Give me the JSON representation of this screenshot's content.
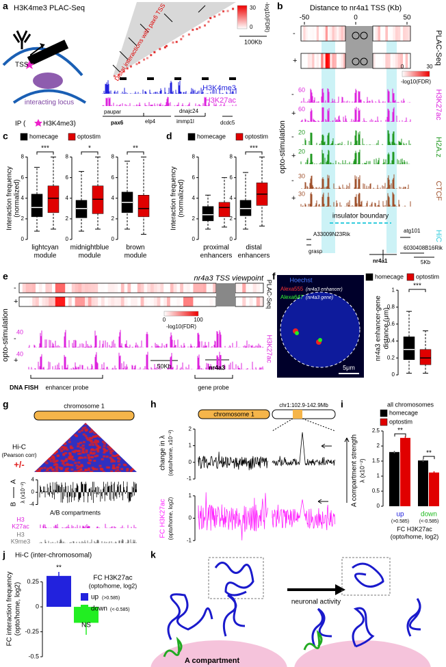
{
  "a": {
    "label": "a",
    "title": "H3K4me3 PLAC-Seq",
    "tss": "TSS",
    "interacting_locus": "interacting locus",
    "ip_prefix": "IP (",
    "ip_suffix": "H3K4me3)",
    "annotation": "Distal interactions with pax6 TSS",
    "colorbar": {
      "min": 0,
      "max": 30,
      "label": "-log10(FDR)"
    },
    "scale_bar": "100Kb",
    "tracks": [
      {
        "name": "H3K4me3",
        "color": "#2222dd"
      },
      {
        "name": "H3K27ac",
        "color": "#dd22dd"
      }
    ],
    "genes": [
      "paupar",
      "pax6",
      "elp4",
      "dnajc24",
      "immp1l",
      "dcdc5"
    ]
  },
  "b": {
    "label": "b",
    "title": "Distance to nr4a1 TSS (Kb)",
    "xticks": [
      -50,
      0,
      50
    ],
    "rows": [
      "-",
      "+"
    ],
    "assay": "PLAC-Seq",
    "condition": "opto-stimulation",
    "colorbar": {
      "min": 0,
      "max": 30,
      "label": "-log10(FDR)"
    },
    "tracks": [
      {
        "name": "H3K27ac",
        "color": "#dd22dd",
        "scales": [
          60,
          60
        ]
      },
      {
        "name": "H2A.z",
        "color": "#229922",
        "scales": [
          20,
          20
        ]
      },
      {
        "name": "CTCF",
        "color": "#a0522d",
        "scales": [
          30,
          30
        ]
      }
    ],
    "hic": "HiC",
    "insulator": "insulator boundary",
    "genes": [
      "A33009N23Rik",
      "grasp",
      "nr4a1",
      "atg101",
      "6030408B16Rik"
    ],
    "scale_bar": "5Kb"
  },
  "c": {
    "label": "c",
    "legend": [
      {
        "name": "homecage",
        "color": "#000000"
      },
      {
        "name": "optostim",
        "color": "#e00000"
      }
    ],
    "ylabel": [
      "Interaction frequency",
      "(normalized)"
    ],
    "ylim": [
      0,
      8.5
    ],
    "yticks": [
      0,
      2,
      4,
      6,
      8
    ],
    "groups": [
      {
        "name": [
          "lightcyan",
          "module"
        ],
        "significance": "***",
        "boxes": [
          {
            "min": 0.8,
            "q1": 2.2,
            "median": 3.1,
            "q3": 4.4,
            "max": 7.0
          },
          {
            "min": 1.0,
            "q1": 2.6,
            "median": 4.0,
            "q3": 5.2,
            "max": 8.0
          }
        ]
      },
      {
        "name": [
          "midnightblue",
          "module"
        ],
        "significance": "*",
        "boxes": [
          {
            "min": 0.8,
            "q1": 2.1,
            "median": 3.0,
            "q3": 3.8,
            "max": 6.6
          },
          {
            "min": 1.0,
            "q1": 2.5,
            "median": 3.9,
            "q3": 5.2,
            "max": 8.0
          }
        ]
      },
      {
        "name": [
          "brown",
          "module"
        ],
        "significance": "**",
        "boxes": [
          {
            "min": 1.0,
            "q1": 2.6,
            "median": 3.6,
            "q3": 4.6,
            "max": 7.6
          },
          {
            "min": 0.5,
            "q1": 2.2,
            "median": 3.0,
            "q3": 4.3,
            "max": 8.0
          }
        ]
      }
    ]
  },
  "d": {
    "label": "d",
    "legend": [
      {
        "name": "homecage",
        "color": "#000000"
      },
      {
        "name": "optostim",
        "color": "#e00000"
      }
    ],
    "ylabel": [
      "Interaction frequency",
      "(normalized)"
    ],
    "ylim": [
      0,
      8.5
    ],
    "yticks": [
      0,
      2,
      4,
      6,
      8
    ],
    "groups": [
      {
        "name": [
          "proximal",
          "enhancers"
        ],
        "boxes": [
          {
            "min": 1.0,
            "q1": 1.8,
            "median": 2.4,
            "q3": 3.2,
            "max": 4.3
          },
          {
            "min": 1.2,
            "q1": 2.2,
            "median": 3.1,
            "q3": 3.6,
            "max": 6.0
          }
        ]
      },
      {
        "name": [
          "distal",
          "enhancers"
        ],
        "significance": "***",
        "boxes": [
          {
            "min": 1.0,
            "q1": 2.3,
            "median": 3.0,
            "q3": 3.8,
            "max": 6.5
          },
          {
            "min": 1.3,
            "q1": 3.3,
            "median": 4.4,
            "q3": 5.5,
            "max": 8.0
          }
        ]
      }
    ]
  },
  "e": {
    "label": "e",
    "title": "nr4a3 TSS viewpoint",
    "rows": [
      "-",
      "+"
    ],
    "assay": "PLAC-Seq",
    "condition": "opto-stimulation",
    "colorbar": {
      "min": 0,
      "max": 100,
      "label": "-log10(FDR)"
    },
    "track": {
      "name": "H3K27ac",
      "color": "#dd22dd",
      "scales": [
        40,
        40
      ]
    },
    "scale_bar": "50Kb",
    "gene": "nr4a3",
    "fish": "DNA FISH",
    "probes": [
      "enhancer probe",
      "gene probe"
    ]
  },
  "f": {
    "label": "f",
    "image_labels": {
      "hoechst": "Hoechst",
      "alexa555": "Alexa555",
      "alexa555_target": "(nr4a3 enhancer)",
      "alexa647": "Alexa647",
      "alexa647_target": "(nr4a3 gene)",
      "scale_bar": "5μm"
    },
    "legend": [
      {
        "name": "homecage",
        "color": "#000000"
      },
      {
        "name": "optostim",
        "color": "#e00000"
      }
    ],
    "ylabel": [
      "nr4a3 enhancer-gene",
      "distance (μm)"
    ],
    "ylim": [
      0,
      1.05
    ],
    "yticks": [
      0,
      0.2,
      0.4,
      0.6,
      0.8,
      1
    ],
    "significance": "***",
    "boxes": [
      {
        "min": 0.02,
        "q1": 0.18,
        "median": 0.3,
        "q3": 0.45,
        "max": 0.75
      },
      {
        "min": 0.02,
        "q1": 0.12,
        "median": 0.2,
        "q3": 0.3,
        "max": 0.52
      }
    ]
  },
  "g": {
    "label": "g",
    "chromosome": "chromosome 1",
    "hic": "Hi-C",
    "hic_sub": "(Pearson corr)",
    "sign": "+/-",
    "track_axis": [
      "A",
      "B"
    ],
    "track_ylabel": "λ (x10⁻²)",
    "ylim": [
      -5,
      5
    ],
    "yticks": [
      -4,
      0,
      4
    ],
    "track_title": "A/B compartments",
    "tracks": [
      {
        "name": [
          "H3",
          "K27ac"
        ],
        "color": "#dd22dd"
      },
      {
        "name": [
          "H3",
          "K9me3"
        ],
        "color": "#777777"
      }
    ]
  },
  "h": {
    "label": "h",
    "chromosome": "chromosome 1",
    "region": "chr1:102.9-142.9Mb",
    "top": {
      "ylabel": [
        "change in λ",
        "(opto/home, x10⁻²)"
      ],
      "ylim": [
        -1.2,
        2.5
      ],
      "yticks": [
        -1,
        0,
        1,
        2
      ]
    },
    "bottom": {
      "ylabel": [
        "FC H3K27ac",
        "(opto/home, log2)"
      ],
      "ylim": [
        -1.3,
        1.3
      ],
      "yticks": [
        -1,
        0,
        1
      ],
      "color": "#ff22ff"
    }
  },
  "i": {
    "label": "i",
    "type": "bar",
    "title": "all chromosomes",
    "ylabel": [
      "A compartment strength",
      "λ (x10⁻²)"
    ],
    "ylim": [
      0,
      2.5
    ],
    "yticks": [
      0,
      0.5,
      1,
      1.5,
      2,
      2.5
    ],
    "categories": [
      {
        "name": "up",
        "sub": "(>0.585)",
        "color": "#2222dd"
      },
      {
        "name": "down",
        "sub": "(<-0.585)",
        "color": "#22bb22"
      }
    ],
    "series": [
      {
        "name": "homecage",
        "color": "#000000",
        "values": [
          1.8,
          1.52
        ],
        "errors": [
          0.04,
          0.04
        ]
      },
      {
        "name": "optostim",
        "color": "#e00000",
        "values": [
          2.27,
          1.12
        ],
        "errors": [
          0.06,
          0.04
        ]
      }
    ],
    "significance": [
      "**",
      "**"
    ],
    "xlabel": [
      "FC H3K27ac",
      "(opto/home, log2)"
    ]
  },
  "j": {
    "label": "j",
    "type": "bar",
    "title": "Hi-C (inter-chromosomal)",
    "ylabel": [
      "FC interaction frequency",
      "(opto/home, log2)"
    ],
    "ylim": [
      -0.5,
      0.35
    ],
    "yticks": [
      -0.5,
      -0.25,
      0,
      0.25
    ],
    "values": [
      0.31,
      -0.16
    ],
    "errors": [
      0.04,
      0.12
    ],
    "significance": [
      "**",
      "NS"
    ],
    "legend_title": [
      "FC H3K27ac",
      "(opto/home, log2)"
    ],
    "legend": [
      {
        "name": "up",
        "sub": "(>0.585)",
        "color": "#2222dd"
      },
      {
        "name": "down",
        "sub": "(<-0.585)",
        "color": "#22ee22"
      }
    ]
  },
  "k": {
    "label": "k",
    "arrow": "neuronal activity",
    "compartment": "A compartment"
  }
}
